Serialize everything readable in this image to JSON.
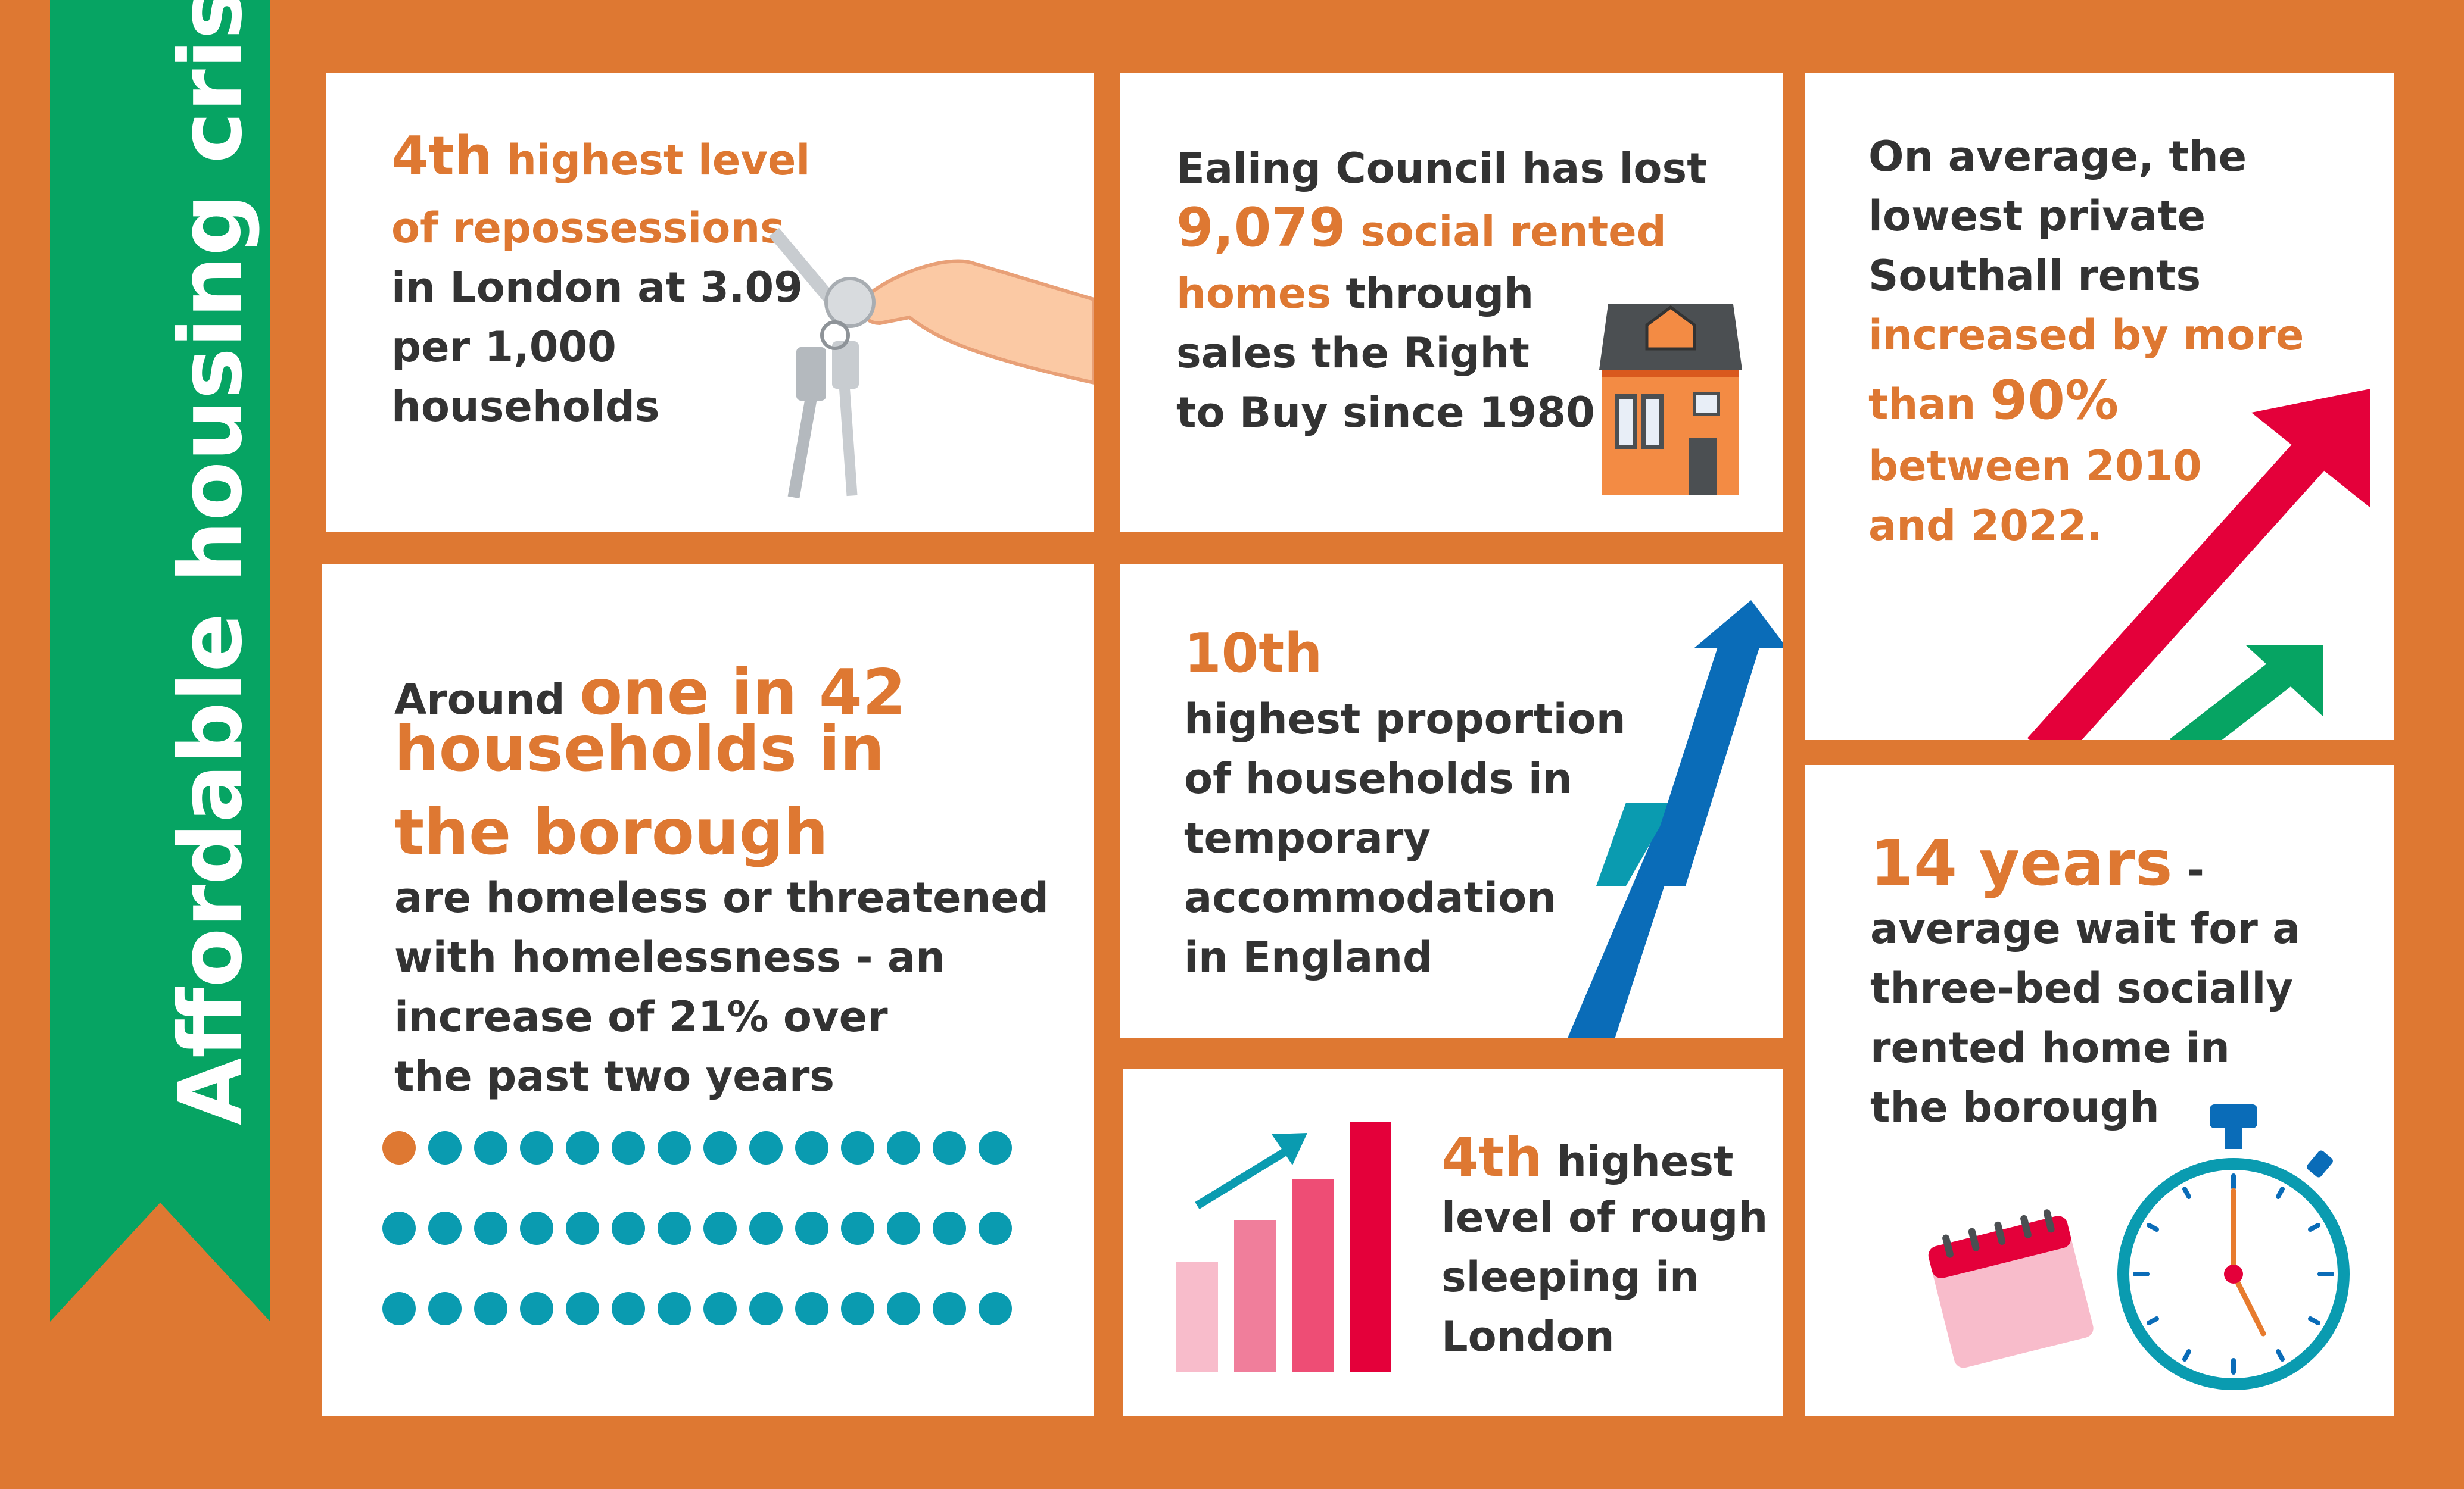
{
  "banner": {
    "title": "Affordable housing crisis"
  },
  "colors": {
    "background": "#DE7832",
    "banner_green": "#06A463",
    "accent_orange": "#DE7832",
    "text": "#333333",
    "teal": "#0A9BB0",
    "blue": "#0A6CB8",
    "red": "#E4003A"
  },
  "repossessions": {
    "highlight_1": "4th",
    "highlight_2": "highest level",
    "highlight_3": "of repossessions",
    "line_1": "in London at 3.09",
    "line_2": "per 1,000",
    "line_3": "households",
    "icon": "keys-in-hand-icon"
  },
  "right_to_buy": {
    "line_1": "Ealing Council has lost",
    "highlight_number": "9,079",
    "highlight_1": "social rented",
    "highlight_2": "homes",
    "line_2": "through",
    "line_3": "sales the Right",
    "line_4": "to Buy since 1980",
    "icon": "house-icon"
  },
  "rents": {
    "line_1": "On average, the",
    "line_2": "lowest private",
    "line_3": "Southall rents",
    "highlight_1": "increased by more",
    "highlight_2": "than",
    "highlight_number": "90%",
    "highlight_3": "between 2010",
    "highlight_4": "and 2022.",
    "icon": "rising-arrows-icon"
  },
  "homeless": {
    "line_1": "Around",
    "highlight_1": "one in 42",
    "highlight_2": "households in",
    "highlight_3": "the borough",
    "line_2": "are homeless or threatened",
    "line_3": "with homelessness - an",
    "line_4": "increase of 21% over",
    "line_5": "the past two years",
    "dots_highlighted": 1,
    "dots_total": 42,
    "dots_per_row": 14
  },
  "temporary_accommodation": {
    "highlight": "10th",
    "line_1": "highest proportion",
    "line_2": "of households in",
    "line_3": "temporary",
    "line_4": "accommodation",
    "line_5": "in England",
    "icon": "zigzag-up-arrow-icon"
  },
  "rough_sleeping": {
    "highlight": "4th",
    "line_1": "highest",
    "line_2": "level of rough",
    "line_3": "sleeping in",
    "line_4": "London",
    "icon": "bar-chart-arrow-icon"
  },
  "wait_time": {
    "highlight": "14 years",
    "dash": "-",
    "line_1": "average wait for a",
    "line_2": "three-bed socially",
    "line_3": "rented home in",
    "line_4": "the borough",
    "icons": [
      "calendar-icon",
      "stopwatch-icon"
    ]
  }
}
